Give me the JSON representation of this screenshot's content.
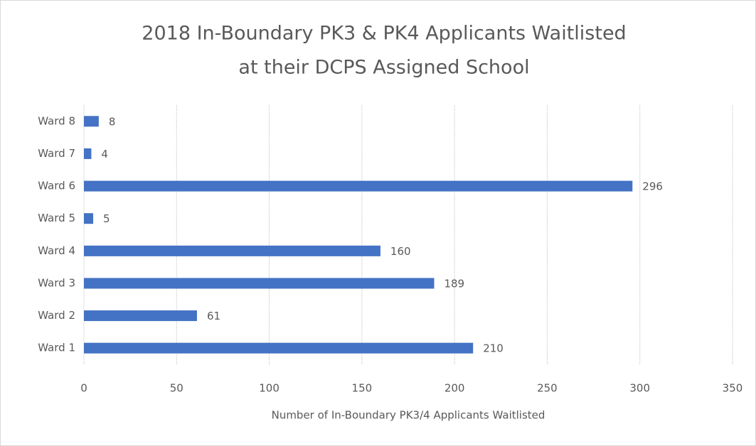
{
  "chart_data": {
    "type": "bar",
    "orientation": "horizontal",
    "title": [
      "2018 In-Boundary PK3 & PK4 Applicants Waitlisted",
      "at their DCPS Assigned School"
    ],
    "categories": [
      "Ward 1",
      "Ward 2",
      "Ward 3",
      "Ward 4",
      "Ward 5",
      "Ward 6",
      "Ward 7",
      "Ward 8"
    ],
    "values": [
      210,
      61,
      189,
      160,
      5,
      296,
      4,
      8
    ],
    "color": "#4472c4",
    "xlim": [
      0,
      350
    ],
    "xticks": [
      0,
      50,
      100,
      150,
      200,
      250,
      300,
      350
    ],
    "xlabel": "Number  of In-Boundary PK3/4 Applicants Waitlisted",
    "grid": true
  }
}
